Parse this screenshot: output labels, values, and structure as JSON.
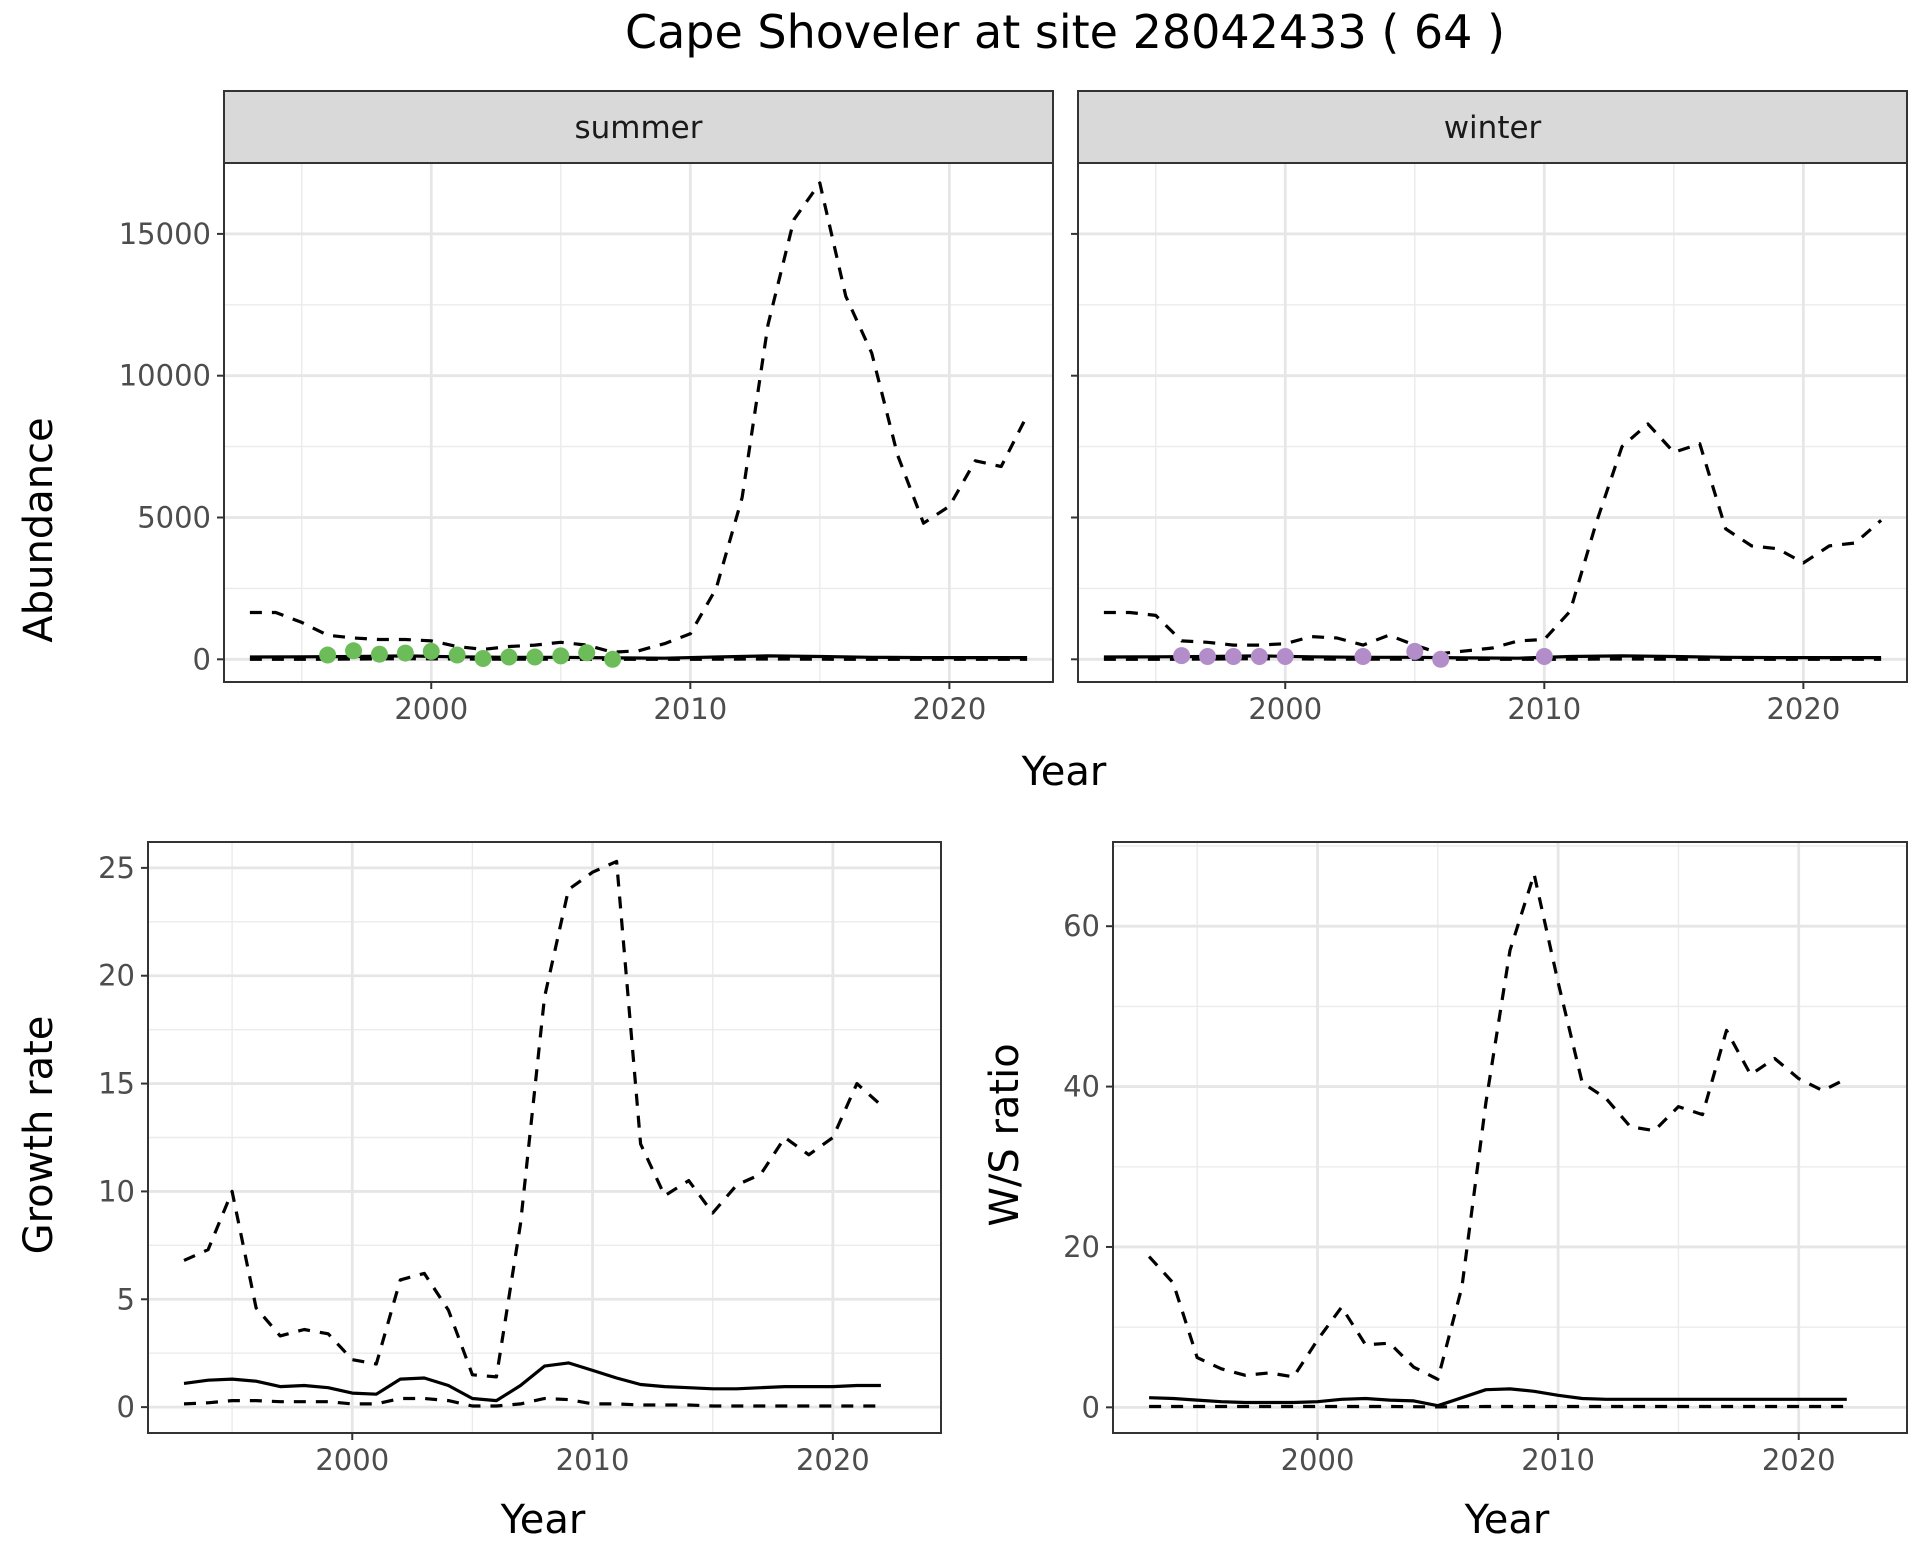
{
  "title": "Cape Shoveler at site 28042433 ( 64 )",
  "chart_data": [
    {
      "type": "line",
      "panel": "summer",
      "facet_label": "summer",
      "xlabel": "Year",
      "ylabel": "Abundance",
      "xlim": [
        1992,
        2024
      ],
      "ylim": [
        -800,
        17500
      ],
      "xticks": [
        2000,
        2010,
        2020
      ],
      "yticks": [
        0,
        5000,
        10000,
        15000
      ],
      "grid": true,
      "point_color": "#6cbd5a",
      "series": [
        {
          "x": [
            1993,
            1994,
            1995,
            1996,
            1997,
            1998,
            1999,
            2000,
            2001,
            2002,
            2003,
            2004,
            2005,
            2006,
            2007,
            2008,
            2009,
            2010,
            2011,
            2012,
            2013,
            2014,
            2015,
            2016,
            2017,
            2018,
            2019,
            2020,
            2021,
            2022,
            2023
          ],
          "values": [
            1650,
            1650,
            1300,
            850,
            750,
            700,
            700,
            650,
            450,
            350,
            450,
            500,
            600,
            500,
            250,
            300,
            550,
            900,
            2500,
            5700,
            11800,
            15500,
            16800,
            12800,
            10800,
            7200,
            4800,
            5400,
            7000,
            6800,
            8600
          ],
          "style": "dashed"
        },
        {
          "x": [
            1993,
            1995,
            1997,
            1999,
            2001,
            2003,
            2005,
            2007,
            2009,
            2011,
            2013,
            2015,
            2017,
            2019,
            2021,
            2023
          ],
          "values": [
            80,
            90,
            100,
            120,
            90,
            70,
            70,
            50,
            40,
            80,
            120,
            100,
            70,
            60,
            60,
            60
          ],
          "style": "solid"
        },
        {
          "x": [
            1993,
            1995,
            1997,
            1999,
            2001,
            2003,
            2005,
            2007,
            2009,
            2011,
            2013,
            2015,
            2017,
            2019,
            2021,
            2023
          ],
          "values": [
            0,
            0,
            10,
            20,
            10,
            5,
            5,
            0,
            0,
            5,
            10,
            5,
            0,
            0,
            0,
            0
          ],
          "style": "dashed"
        }
      ],
      "points": {
        "x": [
          1996,
          1997,
          1998,
          1999,
          2000,
          2001,
          2002,
          2003,
          2004,
          2005,
          2006,
          2007
        ],
        "values": [
          150,
          300,
          180,
          220,
          280,
          150,
          30,
          80,
          80,
          120,
          230,
          0
        ]
      }
    },
    {
      "type": "line",
      "panel": "winter",
      "facet_label": "winter",
      "xlabel": "Year",
      "ylabel": "Abundance",
      "xlim": [
        1992,
        2024
      ],
      "ylim": [
        -800,
        17500
      ],
      "xticks": [
        2000,
        2010,
        2020
      ],
      "yticks": [
        0,
        5000,
        10000,
        15000
      ],
      "grid": true,
      "point_color": "#b28dc9",
      "series": [
        {
          "x": [
            1993,
            1994,
            1995,
            1996,
            1997,
            1998,
            1999,
            2000,
            2001,
            2002,
            2003,
            2004,
            2005,
            2006,
            2007,
            2008,
            2009,
            2010,
            2011,
            2012,
            2013,
            2014,
            2015,
            2016,
            2017,
            2018,
            2019,
            2020,
            2021,
            2022,
            2023
          ],
          "values": [
            1650,
            1650,
            1550,
            650,
            600,
            500,
            500,
            550,
            800,
            750,
            500,
            850,
            500,
            200,
            300,
            400,
            650,
            700,
            1700,
            4800,
            7500,
            8300,
            7300,
            7600,
            4600,
            4000,
            3900,
            3400,
            4000,
            4100,
            4900
          ],
          "style": "dashed"
        },
        {
          "x": [
            1993,
            1995,
            1997,
            1999,
            2001,
            2003,
            2005,
            2007,
            2009,
            2011,
            2013,
            2015,
            2017,
            2019,
            2021,
            2023
          ],
          "values": [
            80,
            90,
            100,
            120,
            90,
            70,
            70,
            50,
            40,
            100,
            120,
            100,
            70,
            60,
            60,
            60
          ],
          "style": "solid"
        },
        {
          "x": [
            1993,
            1995,
            1997,
            1999,
            2001,
            2003,
            2005,
            2007,
            2009,
            2011,
            2013,
            2015,
            2017,
            2019,
            2021,
            2023
          ],
          "values": [
            0,
            0,
            10,
            20,
            10,
            5,
            5,
            0,
            0,
            5,
            10,
            5,
            0,
            0,
            0,
            0
          ],
          "style": "dashed"
        }
      ],
      "points": {
        "x": [
          1996,
          1997,
          1998,
          1999,
          2000,
          2003,
          2005,
          2006,
          2010
        ],
        "values": [
          130,
          100,
          100,
          100,
          100,
          100,
          280,
          0,
          100
        ]
      }
    },
    {
      "type": "line",
      "panel": "growth",
      "xlabel": "Year",
      "ylabel": "Growth rate",
      "xlim": [
        1991.5,
        2024.5
      ],
      "ylim": [
        -1.2,
        26.2
      ],
      "xticks": [
        2000,
        2010,
        2020
      ],
      "yticks": [
        0,
        5,
        10,
        15,
        20,
        25
      ],
      "grid": true,
      "series": [
        {
          "x": [
            1993,
            1994,
            1995,
            1996,
            1997,
            1998,
            1999,
            2000,
            2001,
            2002,
            2003,
            2004,
            2005,
            2006,
            2007,
            2008,
            2009,
            2010,
            2011,
            2012,
            2013,
            2014,
            2015,
            2016,
            2017,
            2018,
            2019,
            2020,
            2021,
            2022
          ],
          "values": [
            6.8,
            7.3,
            10.0,
            4.6,
            3.3,
            3.6,
            3.4,
            2.2,
            2.0,
            5.9,
            6.2,
            4.5,
            1.5,
            1.4,
            8.5,
            19.0,
            24.0,
            24.8,
            25.3,
            12.2,
            9.8,
            10.5,
            9.0,
            10.3,
            10.8,
            12.5,
            11.7,
            12.5,
            15.0,
            14.0
          ],
          "style": "dashed"
        },
        {
          "x": [
            1993,
            1994,
            1995,
            1996,
            1997,
            1998,
            1999,
            2000,
            2001,
            2002,
            2003,
            2004,
            2005,
            2006,
            2007,
            2008,
            2009,
            2010,
            2011,
            2012,
            2013,
            2014,
            2015,
            2016,
            2017,
            2018,
            2019,
            2020,
            2021,
            2022
          ],
          "values": [
            1.1,
            1.25,
            1.3,
            1.2,
            0.95,
            1.0,
            0.9,
            0.65,
            0.6,
            1.3,
            1.35,
            1.0,
            0.4,
            0.3,
            1.0,
            1.9,
            2.05,
            1.7,
            1.35,
            1.05,
            0.95,
            0.9,
            0.85,
            0.85,
            0.9,
            0.95,
            0.95,
            0.95,
            1.0,
            1.0
          ],
          "style": "solid"
        },
        {
          "x": [
            1993,
            1994,
            1995,
            1996,
            1997,
            1998,
            1999,
            2000,
            2001,
            2002,
            2003,
            2004,
            2005,
            2006,
            2007,
            2008,
            2009,
            2010,
            2011,
            2012,
            2013,
            2014,
            2015,
            2016,
            2017,
            2018,
            2019,
            2020,
            2021,
            2022
          ],
          "values": [
            0.15,
            0.2,
            0.3,
            0.3,
            0.25,
            0.25,
            0.25,
            0.15,
            0.15,
            0.4,
            0.4,
            0.3,
            0.05,
            0.05,
            0.15,
            0.4,
            0.35,
            0.15,
            0.15,
            0.1,
            0.1,
            0.1,
            0.05,
            0.05,
            0.05,
            0.05,
            0.05,
            0.05,
            0.05,
            0.05
          ],
          "style": "dashed"
        }
      ]
    },
    {
      "type": "line",
      "panel": "ratio",
      "xlabel": "Year",
      "ylabel": "W/S ratio",
      "xlim": [
        1991.5,
        2024.5
      ],
      "ylim": [
        -3.2,
        70.5
      ],
      "xticks": [
        2000,
        2010,
        2020
      ],
      "yticks": [
        0,
        20,
        40,
        60
      ],
      "grid": true,
      "series": [
        {
          "x": [
            1993,
            1994,
            1995,
            1996,
            1997,
            1998,
            1999,
            2000,
            2001,
            2002,
            2003,
            2004,
            2005,
            2006,
            2007,
            2008,
            2009,
            2010,
            2011,
            2012,
            2013,
            2014,
            2015,
            2016,
            2017,
            2018,
            2019,
            2020,
            2021,
            2022
          ],
          "values": [
            18.8,
            15.5,
            6.2,
            4.8,
            4.0,
            4.3,
            3.8,
            8.4,
            12.5,
            7.8,
            8.0,
            5.0,
            3.5,
            15.0,
            38.0,
            57.0,
            66.5,
            53.0,
            40.5,
            38.5,
            35.0,
            34.5,
            37.5,
            36.5,
            47.0,
            41.5,
            43.5,
            41.0,
            39.5,
            41.0
          ],
          "style": "dashed"
        },
        {
          "x": [
            1993,
            1994,
            1995,
            1996,
            1997,
            1998,
            1999,
            2000,
            2001,
            2002,
            2003,
            2004,
            2005,
            2006,
            2007,
            2008,
            2009,
            2010,
            2011,
            2012,
            2013,
            2014,
            2015,
            2016,
            2017,
            2018,
            2019,
            2020,
            2021,
            2022
          ],
          "values": [
            1.2,
            1.1,
            0.9,
            0.7,
            0.6,
            0.6,
            0.6,
            0.7,
            1.0,
            1.1,
            0.9,
            0.8,
            0.2,
            1.2,
            2.2,
            2.3,
            2.0,
            1.5,
            1.1,
            1.0,
            1.0,
            1.0,
            1.0,
            1.0,
            1.0,
            1.0,
            1.0,
            1.0,
            1.0,
            1.0
          ],
          "style": "solid"
        },
        {
          "x": [
            1993,
            1995,
            1997,
            1999,
            2001,
            2003,
            2005,
            2007,
            2009,
            2011,
            2013,
            2015,
            2017,
            2019,
            2021,
            2022
          ],
          "values": [
            0.1,
            0.1,
            0.1,
            0.1,
            0.1,
            0.1,
            0.05,
            0.1,
            0.1,
            0.1,
            0.1,
            0.1,
            0.1,
            0.1,
            0.1,
            0.1
          ],
          "style": "dashed"
        }
      ]
    }
  ]
}
